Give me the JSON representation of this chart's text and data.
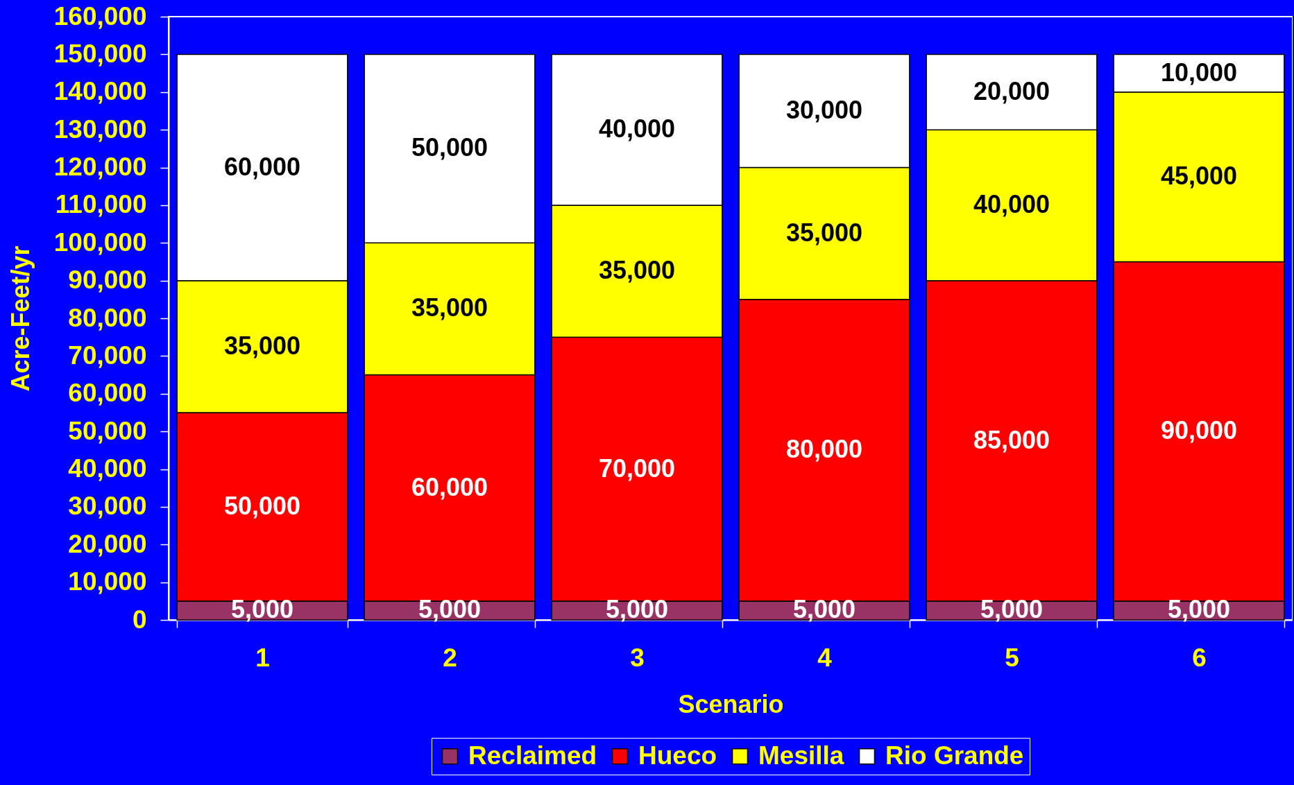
{
  "chart_data": {
    "type": "bar",
    "stacked": true,
    "xlabel": "Scenario",
    "ylabel": "Acre-Feet/yr",
    "categories": [
      "1",
      "2",
      "3",
      "4",
      "5",
      "6"
    ],
    "series": [
      {
        "name": "Reclaimed",
        "color": "#993366",
        "values": [
          5000,
          5000,
          5000,
          5000,
          5000,
          5000
        ],
        "value_labels": [
          "5,000",
          "5,000",
          "5,000",
          "5,000",
          "5,000",
          "5,000"
        ]
      },
      {
        "name": "Hueco",
        "color": "#ff0000",
        "values": [
          50000,
          60000,
          70000,
          80000,
          85000,
          90000
        ],
        "value_labels": [
          "50,000",
          "60,000",
          "70,000",
          "80,000",
          "85,000",
          "90,000"
        ]
      },
      {
        "name": "Mesilla",
        "color": "#ffff00",
        "values": [
          35000,
          35000,
          35000,
          35000,
          40000,
          45000
        ],
        "value_labels": [
          "35,000",
          "35,000",
          "35,000",
          "35,000",
          "40,000",
          "45,000"
        ]
      },
      {
        "name": "Rio Grande",
        "color": "#ffffff",
        "values": [
          60000,
          50000,
          40000,
          30000,
          20000,
          10000
        ],
        "value_labels": [
          "60,000",
          "50,000",
          "40,000",
          "30,000",
          "20,000",
          "10,000"
        ]
      }
    ],
    "ylim": [
      0,
      160000
    ],
    "yticks": [
      0,
      {
        "value": 10000,
        "label": "10,000"
      },
      {
        "value": 20000,
        "label": "20,000"
      },
      {
        "value": 30000,
        "label": "30,000"
      },
      {
        "value": 40000,
        "label": "40,000"
      },
      {
        "value": 50000,
        "label": "50,000"
      },
      {
        "value": 60000,
        "label": "60,000"
      },
      {
        "value": 70000,
        "label": "70,000"
      },
      {
        "value": 80000,
        "label": "80,000"
      },
      {
        "value": 90000,
        "label": "90,000"
      },
      {
        "value": 100000,
        "label": "100,000"
      },
      {
        "value": 110000,
        "label": "110,000"
      },
      {
        "value": 120000,
        "label": "120,000"
      },
      {
        "value": 130000,
        "label": "130,000"
      },
      {
        "value": 140000,
        "label": "140,000"
      },
      {
        "value": 150000,
        "label": "150,000"
      },
      {
        "value": 160000,
        "label": "160,000"
      }
    ],
    "legend": "bottom"
  }
}
